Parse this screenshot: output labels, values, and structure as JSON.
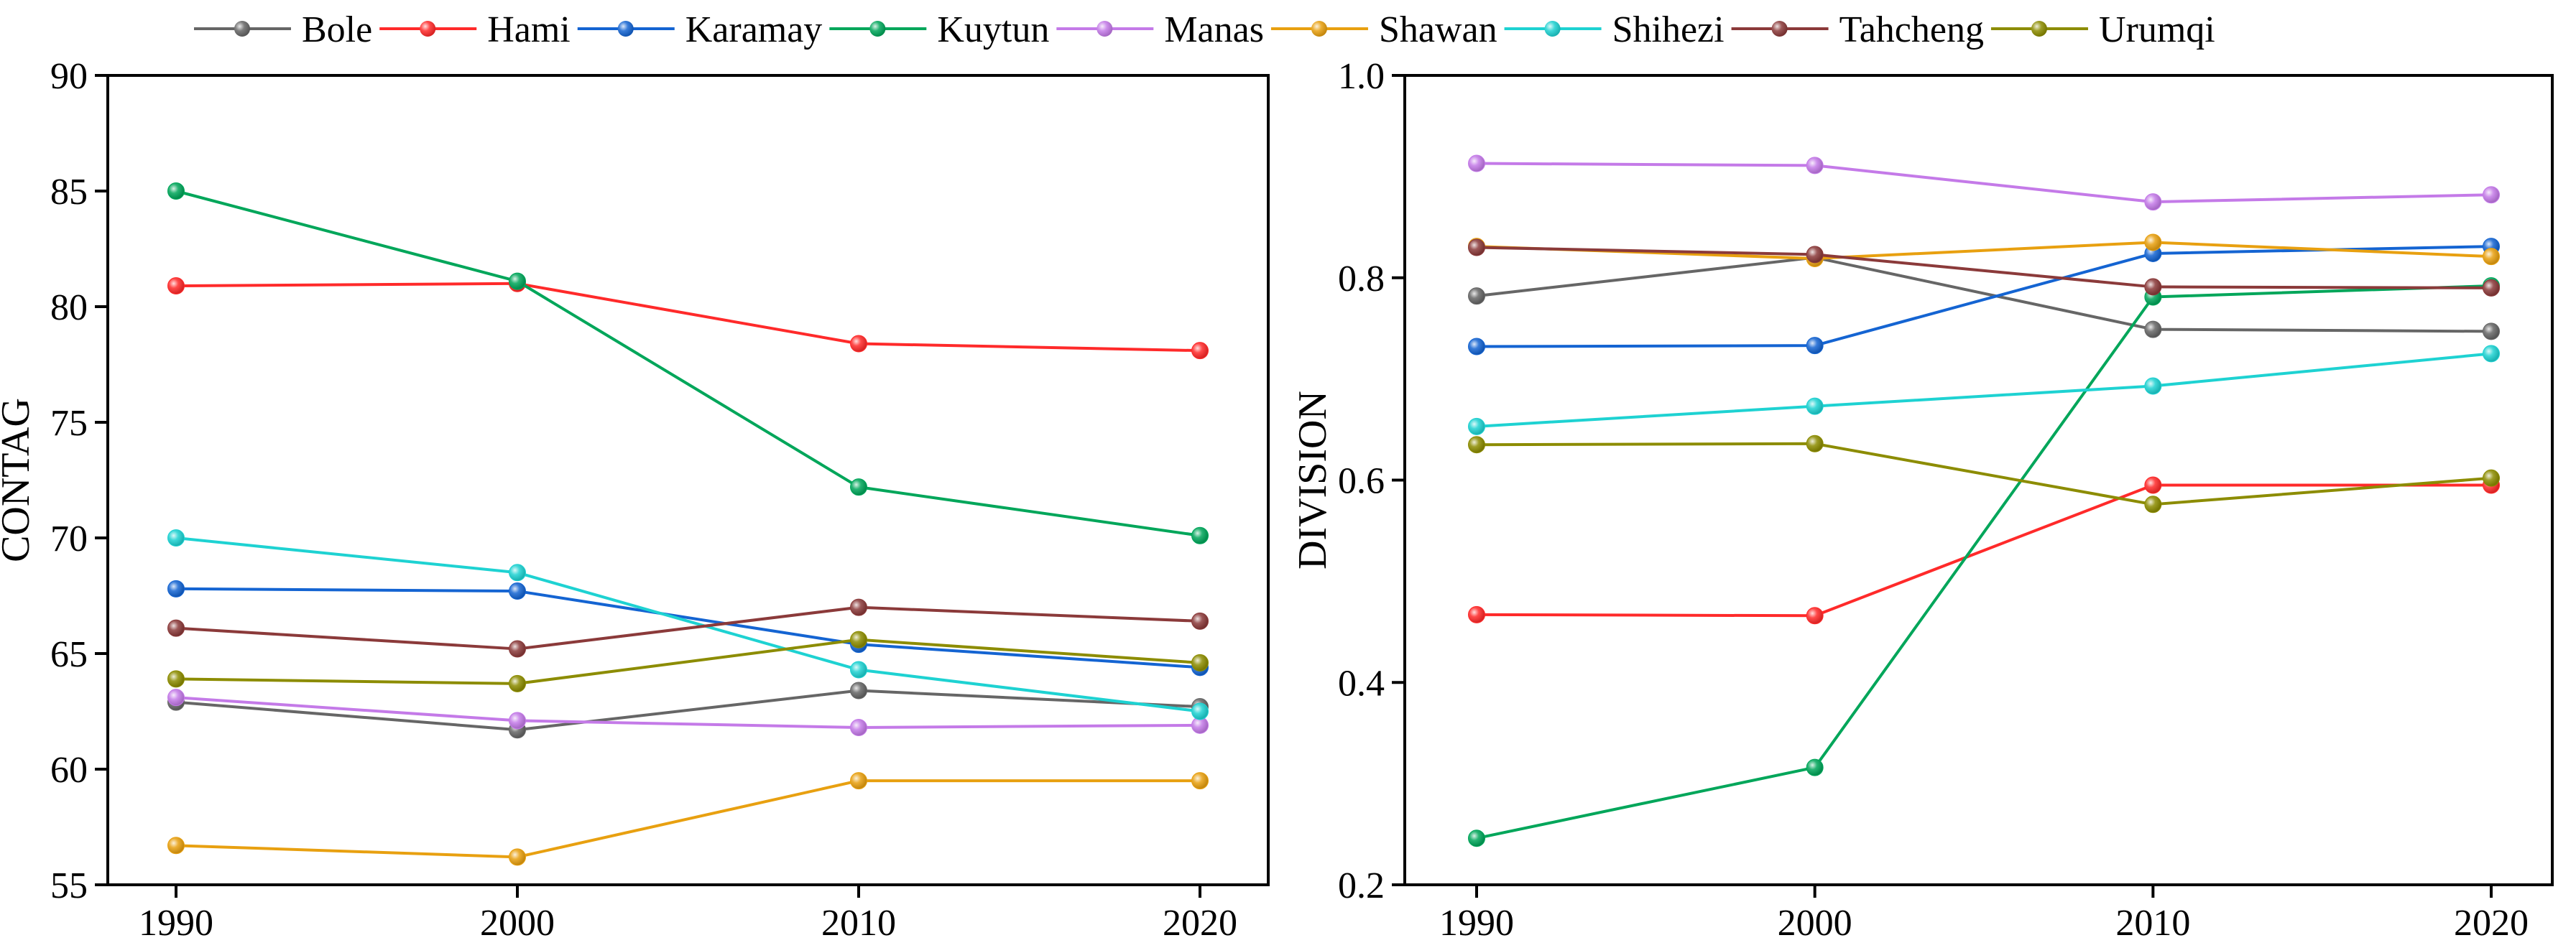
{
  "legend": {
    "placement": "top",
    "entries": [
      {
        "name": "Bole",
        "color": "#666666"
      },
      {
        "name": "Hami",
        "color": "#ff2a2a"
      },
      {
        "name": "Karamay",
        "color": "#1464d2"
      },
      {
        "name": "Kuytun",
        "color": "#00a65a"
      },
      {
        "name": "Manas",
        "color": "#c47ae8"
      },
      {
        "name": "Shawan",
        "color": "#e8a010"
      },
      {
        "name": "Shihezi",
        "color": "#1ed2d2"
      },
      {
        "name": "Tahcheng",
        "color": "#8b3a3a"
      },
      {
        "name": "Urumqi",
        "color": "#8c8c00"
      }
    ]
  },
  "chart_data": [
    {
      "type": "line",
      "title": "",
      "xlabel": "",
      "ylabel": "CONTAG",
      "x": [
        1990,
        2000,
        2010,
        2020
      ],
      "xticks": [
        "1990",
        "2000",
        "2010",
        "2020"
      ],
      "ylim": [
        55,
        90
      ],
      "yticks": [
        "55",
        "60",
        "65",
        "70",
        "75",
        "80",
        "85",
        "90"
      ],
      "series": [
        {
          "name": "Bole",
          "color": "#666666",
          "values": [
            62.9,
            61.7,
            63.4,
            62.7
          ]
        },
        {
          "name": "Hami",
          "color": "#ff2a2a",
          "values": [
            80.9,
            81.0,
            78.4,
            78.1
          ]
        },
        {
          "name": "Karamay",
          "color": "#1464d2",
          "values": [
            67.8,
            67.7,
            65.4,
            64.4
          ]
        },
        {
          "name": "Kuytun",
          "color": "#00a65a",
          "values": [
            85.0,
            81.1,
            72.2,
            70.1
          ]
        },
        {
          "name": "Manas",
          "color": "#c47ae8",
          "values": [
            63.1,
            62.1,
            61.8,
            61.9
          ]
        },
        {
          "name": "Shawan",
          "color": "#e8a010",
          "values": [
            56.7,
            56.2,
            59.5,
            59.5
          ]
        },
        {
          "name": "Shihezi",
          "color": "#1ed2d2",
          "values": [
            70.0,
            68.5,
            64.3,
            62.5
          ]
        },
        {
          "name": "Tahcheng",
          "color": "#8b3a3a",
          "values": [
            66.1,
            65.2,
            67.0,
            66.4
          ]
        },
        {
          "name": "Urumqi",
          "color": "#8c8c00",
          "values": [
            63.9,
            63.7,
            65.6,
            64.6
          ]
        }
      ]
    },
    {
      "type": "line",
      "title": "",
      "xlabel": "",
      "ylabel": "DIVISION",
      "x": [
        1990,
        2000,
        2010,
        2020
      ],
      "xticks": [
        "1990",
        "2000",
        "2010",
        "2020"
      ],
      "ylim": [
        0.2,
        1.0
      ],
      "yticks": [
        "0.2",
        "0.4",
        "0.6",
        "0.8",
        "1.0"
      ],
      "series": [
        {
          "name": "Bole",
          "color": "#666666",
          "values": [
            0.782,
            0.82,
            0.749,
            0.747
          ]
        },
        {
          "name": "Hami",
          "color": "#ff2a2a",
          "values": [
            0.467,
            0.466,
            0.595,
            0.595
          ]
        },
        {
          "name": "Karamay",
          "color": "#1464d2",
          "values": [
            0.732,
            0.733,
            0.824,
            0.831
          ]
        },
        {
          "name": "Kuytun",
          "color": "#00a65a",
          "values": [
            0.246,
            0.316,
            0.781,
            0.792
          ]
        },
        {
          "name": "Manas",
          "color": "#c47ae8",
          "values": [
            0.913,
            0.911,
            0.875,
            0.882
          ]
        },
        {
          "name": "Shawan",
          "color": "#e8a010",
          "values": [
            0.831,
            0.819,
            0.835,
            0.821
          ]
        },
        {
          "name": "Shihezi",
          "color": "#1ed2d2",
          "values": [
            0.653,
            0.673,
            0.693,
            0.725
          ]
        },
        {
          "name": "Tahcheng",
          "color": "#8b3a3a",
          "values": [
            0.83,
            0.823,
            0.791,
            0.79
          ]
        },
        {
          "name": "Urumqi",
          "color": "#8c8c00",
          "values": [
            0.635,
            0.636,
            0.576,
            0.602
          ]
        }
      ]
    }
  ]
}
